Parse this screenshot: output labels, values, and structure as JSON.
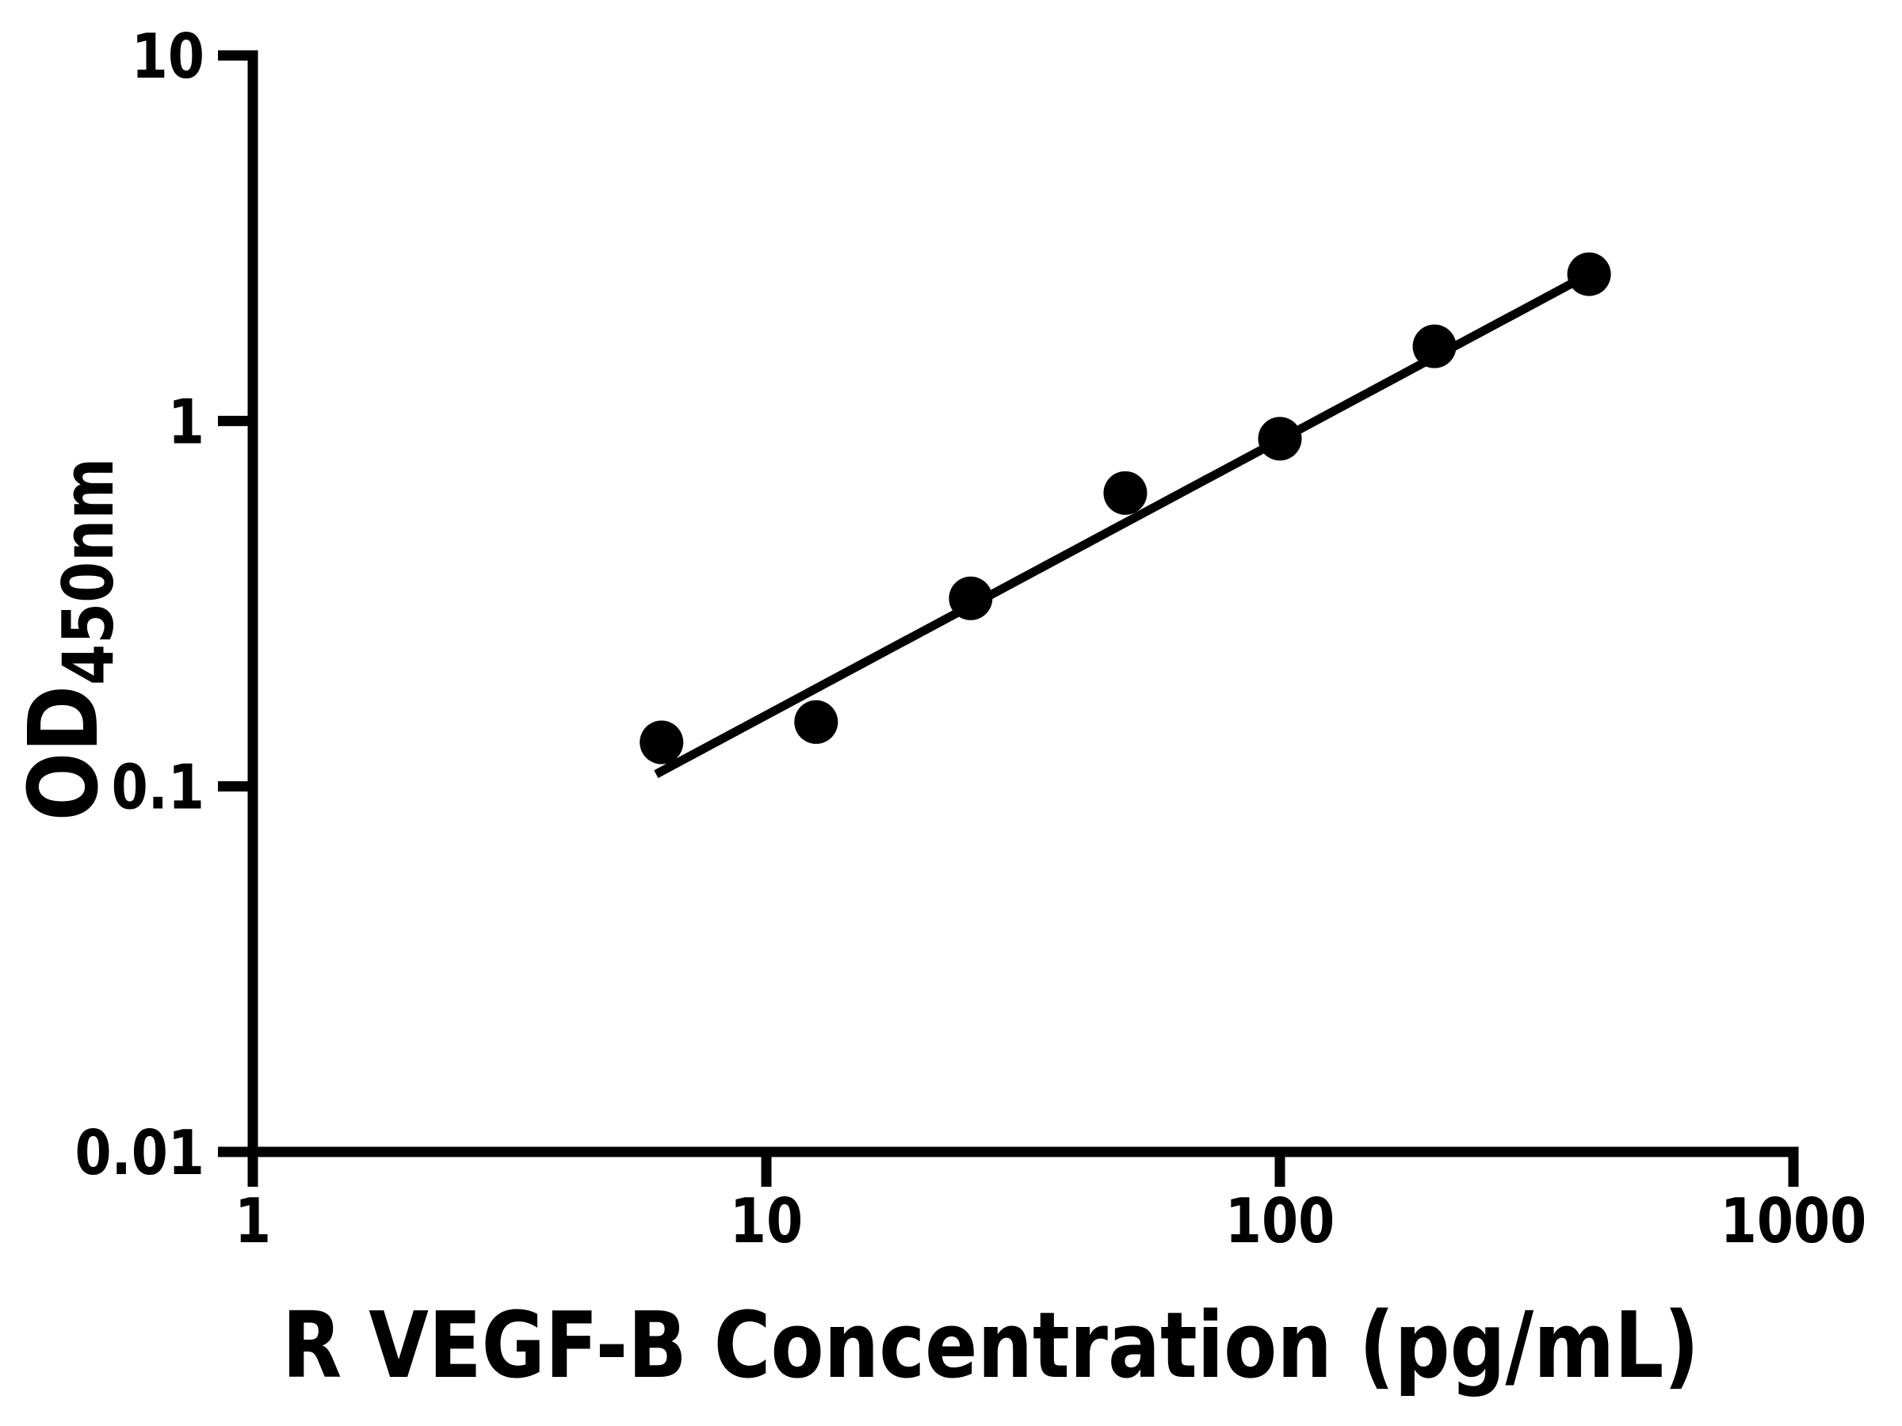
{
  "colors": {
    "background": "#ffffff",
    "axis": "#000000",
    "text": "#000000",
    "marker": "#000000",
    "line": "#000000"
  },
  "chart_data": {
    "type": "scatter",
    "title": "",
    "xlabel": "R VEGF-B Concentration (pg/mL)",
    "ylabel": "OD450nm",
    "ylabel_main": "OD",
    "ylabel_sub": "450nm",
    "x_scale": "log",
    "y_scale": "log",
    "xlim": [
      1,
      1000
    ],
    "ylim": [
      0.01,
      10
    ],
    "x_ticks": [
      "1",
      "10",
      "100",
      "1000"
    ],
    "y_ticks": [
      "0.01",
      "0.1",
      "1",
      "10"
    ],
    "grid": false,
    "legend": false,
    "series": [
      {
        "name": "standard-curve-points",
        "marker": "circle",
        "color": "#000000",
        "points": [
          {
            "x": 6.25,
            "y": 0.132
          },
          {
            "x": 12.5,
            "y": 0.15
          },
          {
            "x": 25,
            "y": 0.327
          },
          {
            "x": 50,
            "y": 0.635
          },
          {
            "x": 100,
            "y": 0.894
          },
          {
            "x": 200,
            "y": 1.6
          },
          {
            "x": 400,
            "y": 2.52
          }
        ]
      }
    ],
    "fit_line": {
      "color": "#000000",
      "x1": 6.1,
      "y1": 0.108,
      "x2": 400,
      "y2": 2.52
    }
  }
}
